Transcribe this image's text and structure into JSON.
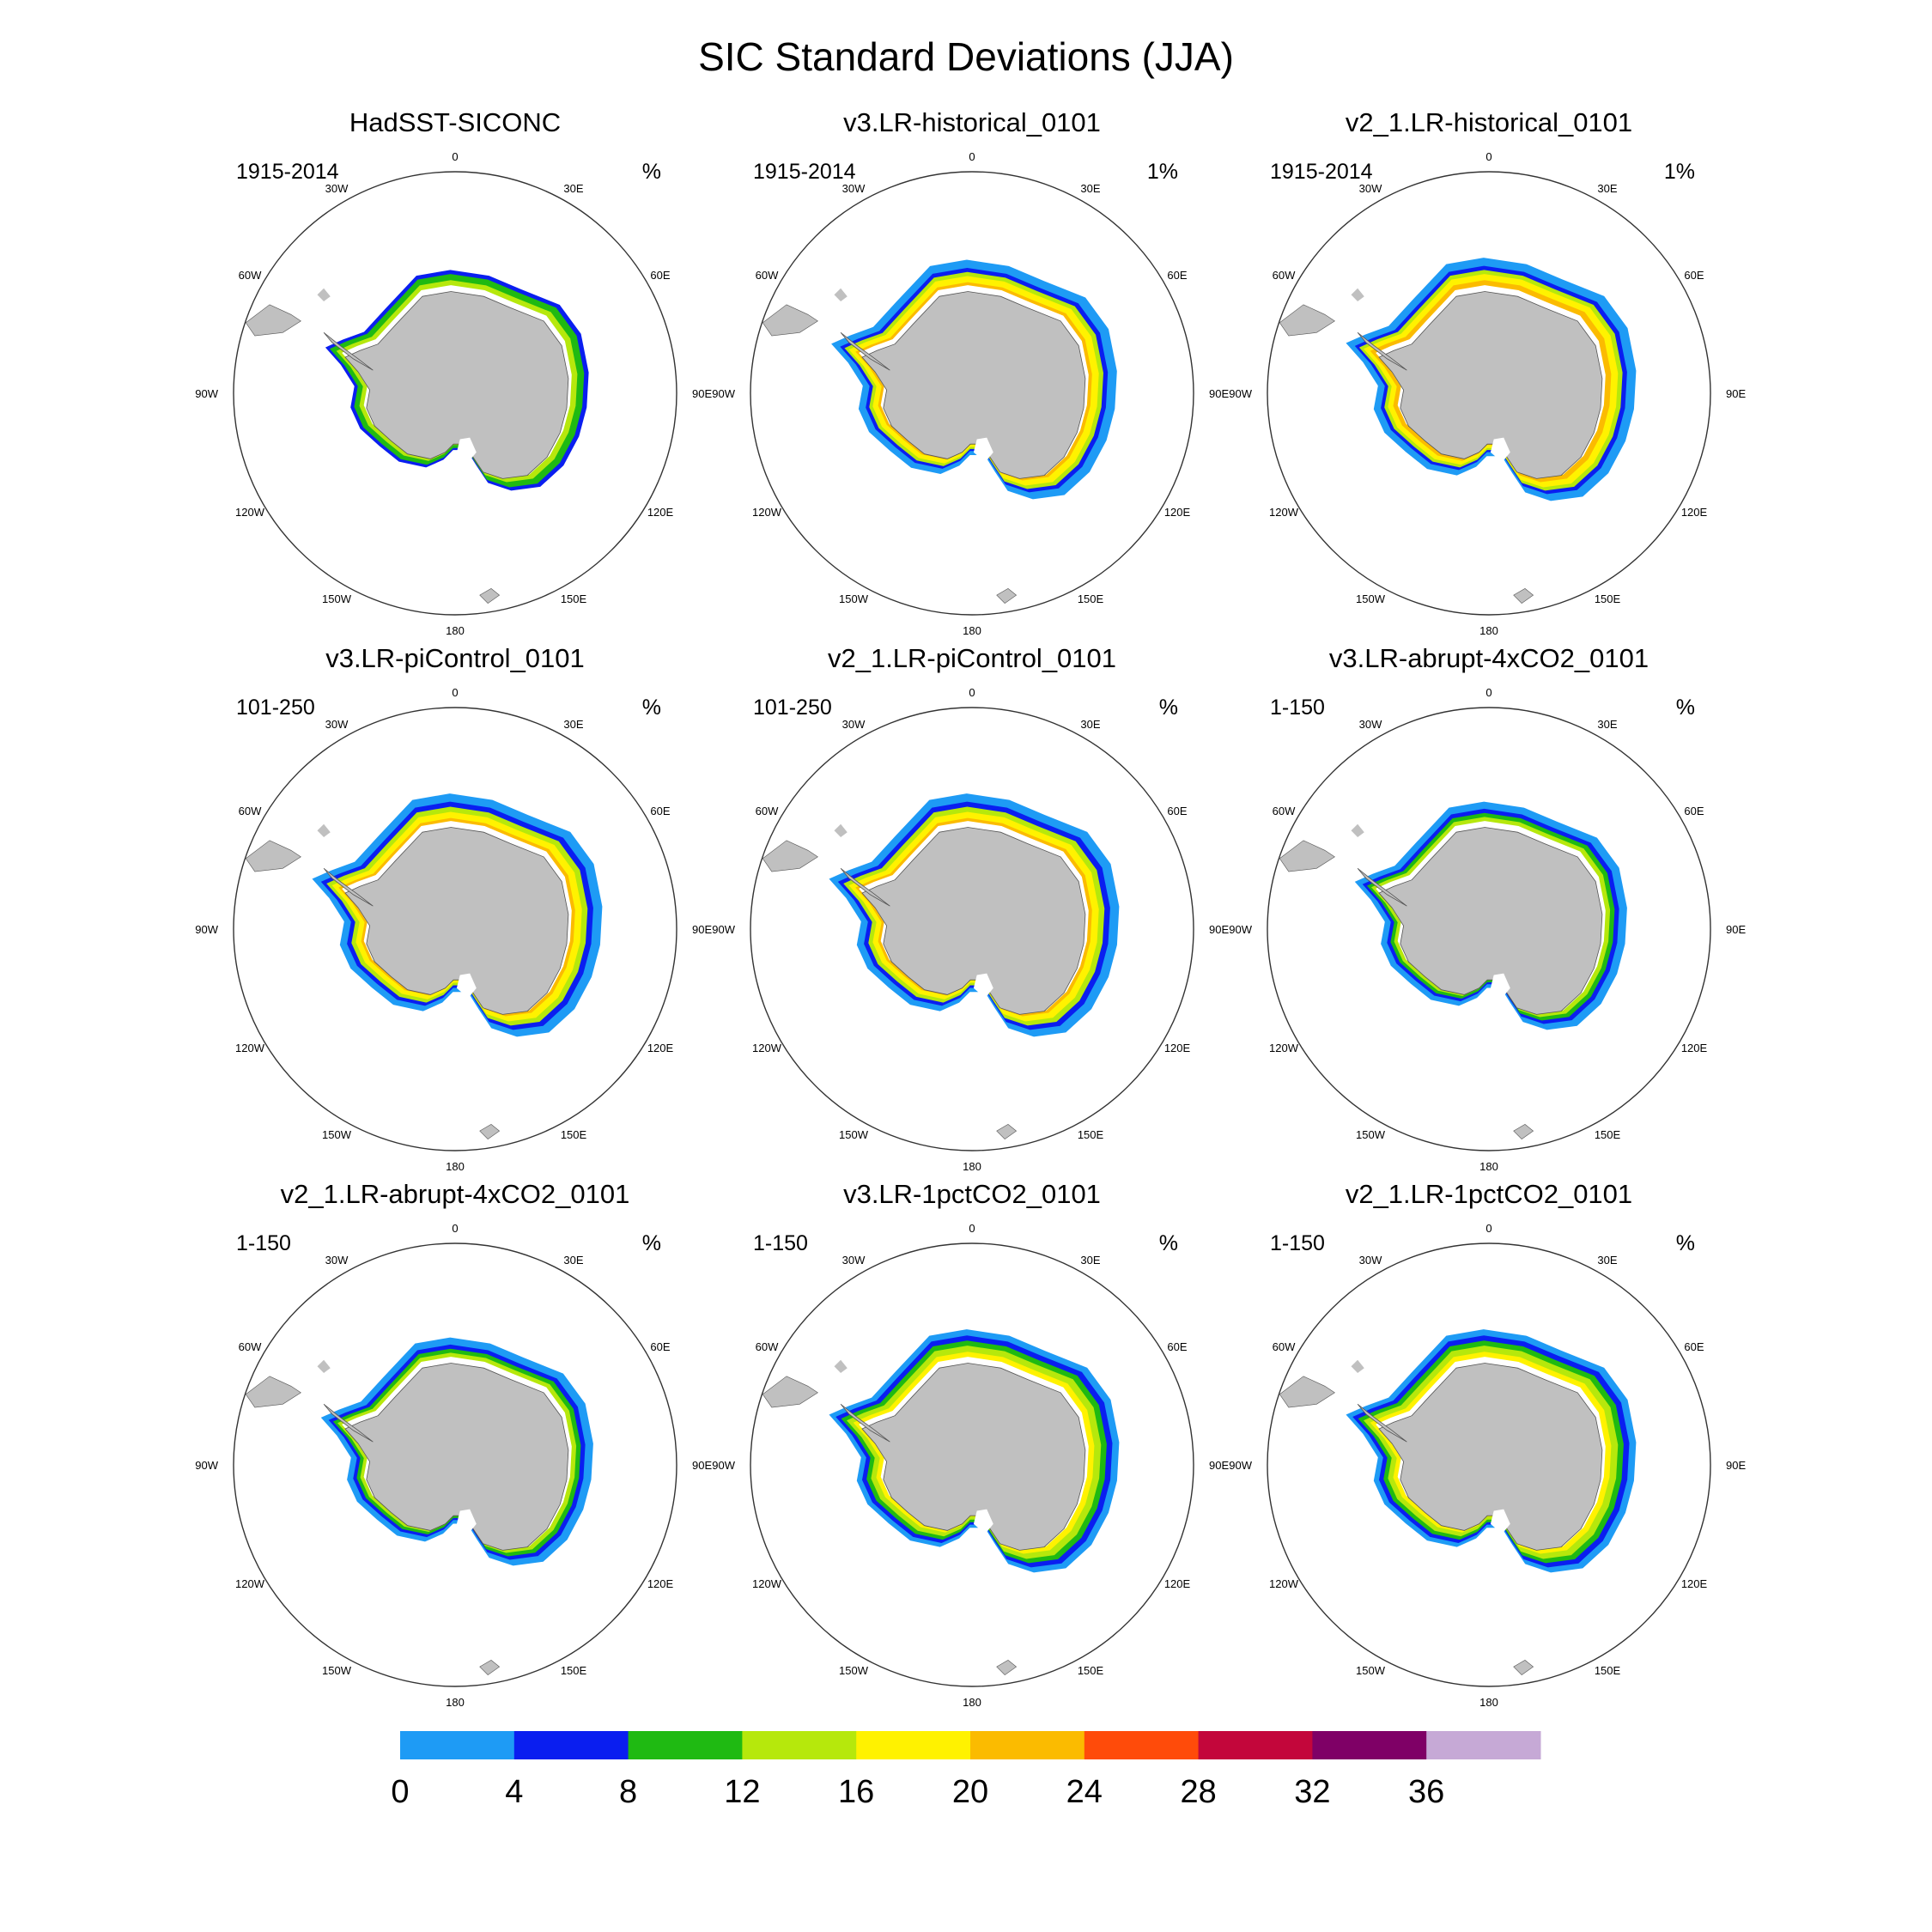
{
  "figure": {
    "title": "SIC Standard Deviations (JJA)"
  },
  "longitude_labels": [
    "0",
    "30E",
    "60E",
    "90E",
    "120E",
    "150E",
    "180",
    "150W",
    "120W",
    "90W",
    "60W",
    "30W"
  ],
  "land_color": "#c0c0c0",
  "panels": [
    {
      "title": "HadSST-SICONC",
      "period": "1915-2014",
      "units": "%",
      "variant": 0
    },
    {
      "title": "v3.LR-historical_0101",
      "period": "1915-2014",
      "units": "1%",
      "variant": 1
    },
    {
      "title": "v2_1.LR-historical_0101",
      "period": "1915-2014",
      "units": "1%",
      "variant": 2
    },
    {
      "title": "v3.LR-piControl_0101",
      "period": "101-250",
      "units": "%",
      "variant": 3
    },
    {
      "title": "v2_1.LR-piControl_0101",
      "period": "101-250",
      "units": "%",
      "variant": 4
    },
    {
      "title": "v3.LR-abrupt-4xCO2_0101",
      "period": "1-150",
      "units": "%",
      "variant": 5
    },
    {
      "title": "v2_1.LR-abrupt-4xCO2_0101",
      "period": "1-150",
      "units": "%",
      "variant": 6
    },
    {
      "title": "v3.LR-1pctCO2_0101",
      "period": "1-150",
      "units": "%",
      "variant": 7
    },
    {
      "title": "v2_1.LR-1pctCO2_0101",
      "period": "1-150",
      "units": "%",
      "variant": 8
    }
  ],
  "colorbar": {
    "bins": [
      {
        "from": 0,
        "to": 4,
        "color": "#1e9bf5"
      },
      {
        "from": 4,
        "to": 8,
        "color": "#0a1ef0"
      },
      {
        "from": 8,
        "to": 12,
        "color": "#1fba12"
      },
      {
        "from": 12,
        "to": 16,
        "color": "#b6e80c"
      },
      {
        "from": 16,
        "to": 20,
        "color": "#fff200"
      },
      {
        "from": 20,
        "to": 24,
        "color": "#fbbb00"
      },
      {
        "from": 24,
        "to": 28,
        "color": "#ff4b0a"
      },
      {
        "from": 28,
        "to": 32,
        "color": "#c3063b"
      },
      {
        "from": 32,
        "to": 36,
        "color": "#7f0066"
      },
      {
        "from": 36,
        "to": null,
        "color": "#c6a9d6"
      }
    ],
    "tick_labels": [
      "0",
      "4",
      "8",
      "12",
      "16",
      "20",
      "24",
      "28",
      "32",
      "36"
    ]
  }
}
